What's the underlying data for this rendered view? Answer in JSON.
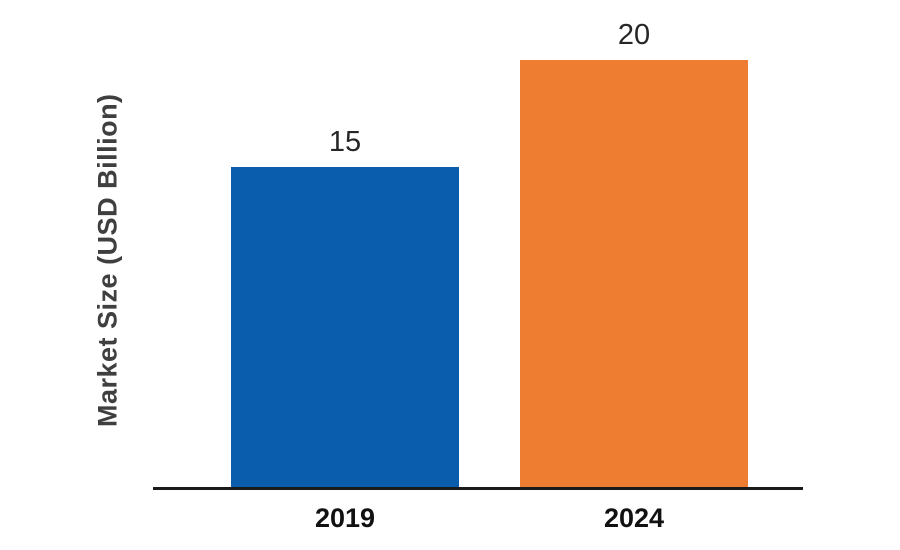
{
  "chart_data": {
    "type": "bar",
    "categories": [
      "2019",
      "2024"
    ],
    "values": [
      15,
      20
    ],
    "series": [
      {
        "name": "Market Size",
        "values": [
          15,
          20
        ]
      }
    ],
    "title": "",
    "xlabel": "",
    "ylabel": "Market Size (USD Billion)",
    "ylim": [
      0,
      21.5
    ],
    "grid": false,
    "legend": false,
    "bar_colors": [
      "#0a5cac",
      "#ee7d31"
    ],
    "axis_color": "#1a1a1a",
    "value_label_color": "#262626",
    "category_label_color": "#111111",
    "ylabel_color": "#3f3f3f"
  }
}
